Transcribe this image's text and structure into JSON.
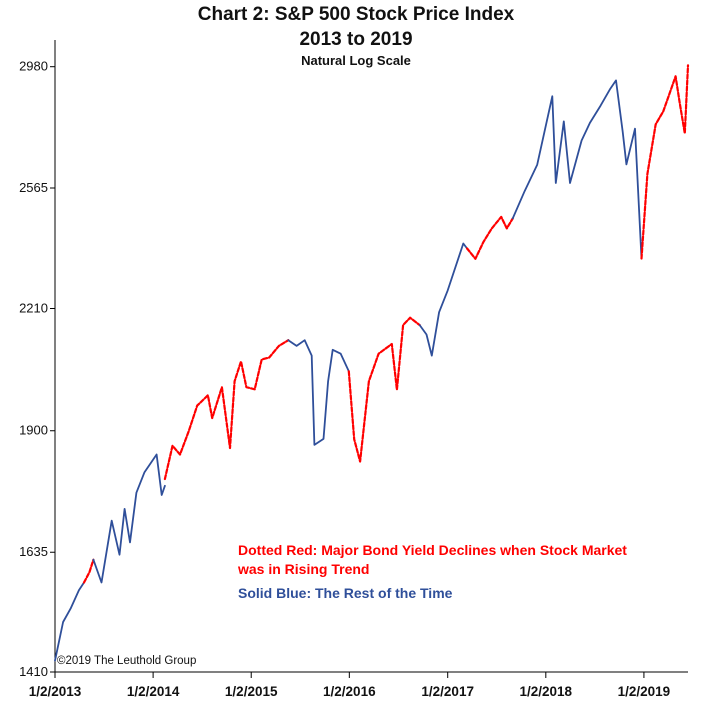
{
  "chart_data": {
    "type": "line",
    "title": "Chart 2: S&P 500 Stock Price Index",
    "title_line2": "2013 to 2019",
    "subtitle": "Natural Log Scale",
    "yscale": "log",
    "ylim": [
      1410,
      3080
    ],
    "xlim": [
      "2013-01-02",
      "2019-06-15"
    ],
    "y_ticks": [
      1410,
      1635,
      1900,
      2210,
      2565,
      2980
    ],
    "y_tick_labels": [
      "1410",
      "1635",
      "1900",
      "2210",
      "2565",
      "2980"
    ],
    "x_ticks": [
      "2013-01-02",
      "2014-01-02",
      "2015-01-02",
      "2016-01-02",
      "2017-01-02",
      "2018-01-02",
      "2019-01-02"
    ],
    "x_tick_labels": [
      "1/2/2013",
      "1/2/2014",
      "1/2/2015",
      "1/2/2016",
      "1/2/2017",
      "1/2/2018",
      "1/2/2019"
    ],
    "grid": false,
    "colors": {
      "red": "#ff0000",
      "blue": "#2f4f9a"
    },
    "legend": [
      {
        "color": "#ff0000",
        "lines": [
          "Dotted Red: Major Bond Yield Declines when Stock Market",
          "was in Rising Trend"
        ]
      },
      {
        "color": "#2f4f9a",
        "lines": [
          "Solid Blue: The Rest of the Time"
        ]
      }
    ],
    "copyright": "©2019 The Leuthold Group",
    "series": [
      {
        "style": "solid",
        "color": "#2f4f9a",
        "x": [
          "2013-01-02",
          "2013-02-01",
          "2013-03-01",
          "2013-04-01",
          "2013-04-20"
        ],
        "y": [
          1430,
          1500,
          1525,
          1560,
          1575
        ]
      },
      {
        "style": "dashed",
        "color": "#ff0000",
        "x": [
          "2013-04-20",
          "2013-05-10",
          "2013-05-25"
        ],
        "y": [
          1575,
          1595,
          1620
        ]
      },
      {
        "style": "solid",
        "color": "#2f4f9a",
        "x": [
          "2013-05-25",
          "2013-06-24",
          "2013-08-01",
          "2013-08-30",
          "2013-09-18",
          "2013-10-08",
          "2013-11-01",
          "2013-12-01",
          "2014-01-15",
          "2014-02-03",
          "2014-02-15"
        ],
        "y": [
          1620,
          1575,
          1700,
          1630,
          1725,
          1655,
          1760,
          1805,
          1845,
          1755,
          1775
        ]
      },
      {
        "style": "dashed",
        "color": "#ff0000",
        "x": [
          "2014-02-15",
          "2014-03-15",
          "2014-04-12",
          "2014-05-15",
          "2014-06-15",
          "2014-07-25",
          "2014-08-10",
          "2014-09-15",
          "2014-10-15",
          "2014-11-01",
          "2014-11-25",
          "2014-12-15",
          "2015-01-15",
          "2015-02-10",
          "2015-03-10",
          "2015-04-15",
          "2015-05-20"
        ],
        "y": [
          1790,
          1865,
          1845,
          1900,
          1960,
          1985,
          1930,
          2005,
          1860,
          2020,
          2070,
          2005,
          2000,
          2075,
          2080,
          2110,
          2125
        ]
      },
      {
        "style": "solid",
        "color": "#2f4f9a",
        "x": [
          "2015-05-20",
          "2015-06-20",
          "2015-07-20",
          "2015-08-15",
          "2015-08-25",
          "2015-09-28",
          "2015-10-15",
          "2015-11-01",
          "2015-12-01",
          "2015-12-31"
        ],
        "y": [
          2125,
          2110,
          2125,
          2085,
          1867,
          1881,
          2020,
          2100,
          2090,
          2045
        ]
      },
      {
        "style": "dashed",
        "color": "#ff0000",
        "x": [
          "2015-12-31",
          "2016-01-20",
          "2016-02-11",
          "2016-03-15",
          "2016-04-20",
          "2016-06-08",
          "2016-06-27",
          "2016-07-20",
          "2016-08-15",
          "2016-09-20"
        ],
        "y": [
          2045,
          1880,
          1829,
          2020,
          2090,
          2115,
          1999,
          2165,
          2185,
          2165
        ]
      },
      {
        "style": "solid",
        "color": "#2f4f9a",
        "x": [
          "2016-09-20",
          "2016-10-15",
          "2016-11-04",
          "2016-12-01",
          "2017-01-02",
          "2017-03-01",
          "2017-03-15"
        ],
        "y": [
          2165,
          2140,
          2085,
          2200,
          2260,
          2395,
          2380
        ]
      },
      {
        "style": "dashed",
        "color": "#ff0000",
        "x": [
          "2017-03-15",
          "2017-04-15",
          "2017-05-15",
          "2017-06-15",
          "2017-07-20",
          "2017-08-10",
          "2017-09-01"
        ],
        "y": [
          2380,
          2350,
          2400,
          2440,
          2475,
          2440,
          2470
        ]
      },
      {
        "style": "solid",
        "color": "#2f4f9a",
        "x": [
          "2017-09-01",
          "2017-10-15",
          "2017-12-01",
          "2018-01-26",
          "2018-02-08",
          "2018-03-10",
          "2018-04-02",
          "2018-05-15",
          "2018-06-15",
          "2018-07-25",
          "2018-08-30",
          "2018-09-20",
          "2018-10-15",
          "2018-10-29",
          "2018-11-30",
          "2018-12-24"
        ],
        "y": [
          2470,
          2555,
          2640,
          2873,
          2581,
          2785,
          2581,
          2720,
          2780,
          2840,
          2900,
          2930,
          2750,
          2641,
          2760,
          2351
        ]
      },
      {
        "style": "dashed",
        "color": "#ff0000",
        "x": [
          "2018-12-24",
          "2019-01-15",
          "2019-02-15",
          "2019-03-15",
          "2019-04-30",
          "2019-05-15",
          "2019-06-03",
          "2019-06-15"
        ],
        "y": [
          2351,
          2610,
          2775,
          2820,
          2945,
          2850,
          2744,
          2985
        ]
      }
    ]
  }
}
